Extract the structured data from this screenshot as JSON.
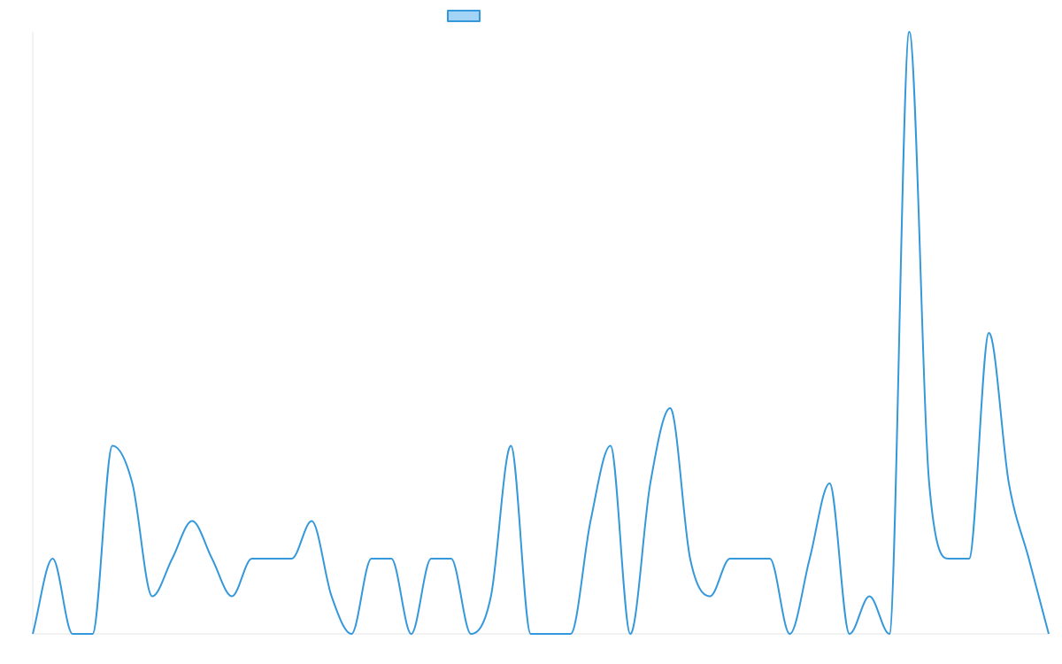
{
  "chart_data": {
    "type": "line",
    "title": "",
    "xlabel": "",
    "ylabel": "",
    "legend": {
      "position": "top-center",
      "entries": [
        ""
      ]
    },
    "grid": false,
    "curve": "smooth",
    "ylim": [
      0,
      16
    ],
    "x_count": 52,
    "series": [
      {
        "name": "",
        "values": [
          0,
          2,
          0,
          0,
          5,
          4,
          1,
          2,
          3,
          2,
          1,
          2,
          2,
          2,
          3,
          1,
          0,
          2,
          2,
          0,
          2,
          2,
          0,
          1,
          5,
          0,
          0,
          0,
          3,
          5,
          0,
          4,
          6,
          2,
          1,
          2,
          2,
          2,
          0,
          2,
          4,
          0,
          1,
          0,
          16,
          4,
          2,
          2,
          8,
          4,
          2,
          0
        ]
      }
    ]
  },
  "colors": {
    "line": "#3498db",
    "legend_fill": "#a3d3f5",
    "axis": "#e6e6e6"
  }
}
